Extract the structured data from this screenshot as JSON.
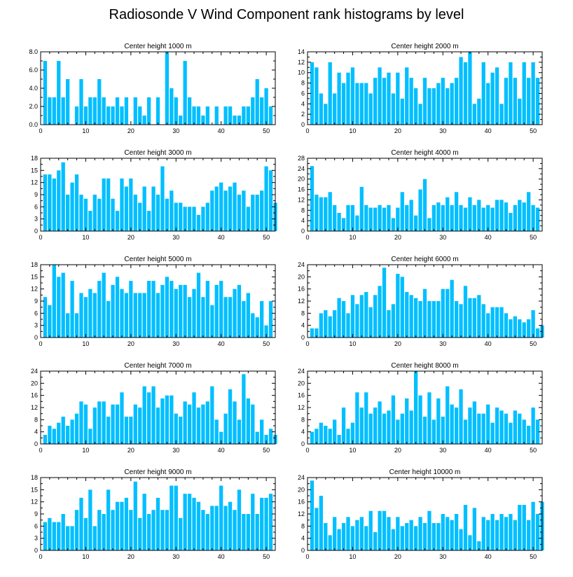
{
  "title": "Radiosonde V Wind Component rank histograms by level",
  "colors": {
    "bar": "#00bfff",
    "axis": "#000000"
  },
  "chart_data": [
    {
      "type": "bar",
      "title": "Center height 1000 m",
      "x_ticks": [
        0,
        10,
        20,
        30,
        40,
        50
      ],
      "xlim": [
        0,
        52
      ],
      "ylim": [
        0,
        8
      ],
      "y_ticks": [
        0,
        2,
        4,
        6,
        8
      ],
      "y_tick_labels": [
        "0.0",
        "2.0",
        "4.0",
        "6.0",
        "8.0"
      ],
      "values": [
        7,
        3,
        3,
        7,
        3,
        5,
        0,
        2,
        5,
        2,
        3,
        3,
        5,
        3,
        2,
        2,
        3,
        2,
        3,
        0,
        3,
        2,
        1,
        3,
        0,
        3,
        0,
        8,
        4,
        3,
        1,
        7,
        3,
        2,
        2,
        1,
        2,
        0,
        2,
        0,
        2,
        2,
        1,
        1,
        2,
        2,
        3,
        5,
        3,
        4,
        2
      ]
    },
    {
      "type": "bar",
      "title": "Center height 2000 m",
      "x_ticks": [
        0,
        10,
        20,
        30,
        40,
        50
      ],
      "xlim": [
        0,
        52
      ],
      "ylim": [
        0,
        14
      ],
      "y_ticks": [
        0,
        2,
        4,
        6,
        8,
        10,
        12,
        14
      ],
      "y_tick_labels": [
        "0",
        "2",
        "4",
        "6",
        "8",
        "10",
        "12",
        "14"
      ],
      "values": [
        12,
        11,
        6,
        4,
        12,
        6,
        10,
        8,
        10,
        11,
        8,
        8,
        8,
        6,
        9,
        11,
        9,
        10,
        6,
        10,
        5,
        11,
        9,
        7,
        4,
        9,
        7,
        7,
        8,
        9,
        7,
        8,
        9,
        13,
        12,
        14,
        4,
        5,
        12,
        8,
        10,
        11,
        4,
        9,
        12,
        9,
        5,
        12,
        9,
        12,
        9
      ]
    },
    {
      "type": "bar",
      "title": "Center height 3000 m",
      "x_ticks": [
        0,
        10,
        20,
        30,
        40,
        50
      ],
      "xlim": [
        0,
        52
      ],
      "ylim": [
        0,
        18
      ],
      "y_ticks": [
        0,
        3,
        6,
        9,
        12,
        15,
        18
      ],
      "y_tick_labels": [
        "0",
        "3",
        "6",
        "9",
        "12",
        "15",
        "18"
      ],
      "values": [
        14,
        14,
        13,
        15,
        17,
        9,
        12,
        14,
        9,
        8,
        5,
        9,
        8,
        13,
        13,
        8,
        5,
        13,
        11,
        13,
        9,
        7,
        11,
        5,
        11,
        9,
        16,
        8,
        10,
        7,
        7,
        6,
        6,
        6,
        4,
        6,
        7,
        10,
        11,
        12,
        10,
        11,
        12,
        9,
        10,
        6,
        9,
        9,
        10,
        16,
        15,
        7
      ]
    },
    {
      "type": "bar",
      "title": "Center height 4000 m",
      "x_ticks": [
        0,
        10,
        20,
        30,
        40,
        50
      ],
      "xlim": [
        0,
        52
      ],
      "ylim": [
        0,
        28
      ],
      "y_ticks": [
        0,
        4,
        8,
        12,
        16,
        20,
        24,
        28
      ],
      "y_tick_labels": [
        "0",
        "4",
        "8",
        "12",
        "16",
        "20",
        "24",
        "28"
      ],
      "values": [
        25,
        14,
        13,
        13,
        15,
        10,
        7,
        5,
        10,
        10,
        6,
        17,
        10,
        9,
        9,
        10,
        9,
        10,
        5,
        9,
        15,
        10,
        12,
        6,
        16,
        20,
        5,
        10,
        11,
        10,
        13,
        10,
        15,
        10,
        9,
        13,
        10,
        12,
        9,
        10,
        9,
        12,
        12,
        11,
        7,
        10,
        12,
        11,
        15,
        10,
        9
      ]
    },
    {
      "type": "bar",
      "title": "Center height 5000 m",
      "x_ticks": [
        0,
        10,
        20,
        30,
        40,
        50
      ],
      "xlim": [
        0,
        52
      ],
      "ylim": [
        0,
        18
      ],
      "y_ticks": [
        0,
        3,
        6,
        9,
        12,
        15,
        18
      ],
      "y_tick_labels": [
        "0",
        "3",
        "6",
        "9",
        "12",
        "15",
        "18"
      ],
      "values": [
        10,
        8,
        18,
        15,
        16,
        6,
        14,
        6,
        11,
        10,
        12,
        11,
        14,
        16,
        9,
        13,
        15,
        12,
        11,
        14,
        11,
        11,
        11,
        14,
        14,
        11,
        13,
        15,
        14,
        12,
        13,
        13,
        10,
        12,
        16,
        10,
        14,
        8,
        13,
        14,
        10,
        10,
        12,
        13,
        9,
        11,
        6,
        5,
        9,
        3,
        9
      ]
    },
    {
      "type": "bar",
      "title": "Center height 6000 m",
      "x_ticks": [
        0,
        10,
        20,
        30,
        40,
        50
      ],
      "xlim": [
        0,
        52
      ],
      "ylim": [
        0,
        24
      ],
      "y_ticks": [
        0,
        4,
        8,
        12,
        16,
        20,
        24
      ],
      "y_tick_labels": [
        "0",
        "4",
        "8",
        "12",
        "16",
        "20",
        "24"
      ],
      "values": [
        3,
        3,
        8,
        9,
        7,
        9,
        13,
        12,
        8,
        14,
        11,
        14,
        15,
        10,
        14,
        17,
        23,
        9,
        11,
        21,
        20,
        15,
        14,
        13,
        12,
        16,
        12,
        12,
        12,
        16,
        16,
        19,
        12,
        11,
        17,
        13,
        13,
        14,
        11,
        8,
        10,
        10,
        10,
        8,
        6,
        7,
        6,
        5,
        6,
        9,
        3,
        4
      ]
    },
    {
      "type": "bar",
      "title": "Center height 7000 m",
      "x_ticks": [
        0,
        10,
        20,
        30,
        40,
        50
      ],
      "xlim": [
        0,
        52
      ],
      "ylim": [
        0,
        24
      ],
      "y_ticks": [
        0,
        4,
        8,
        12,
        16,
        20,
        24
      ],
      "y_tick_labels": [
        "0",
        "4",
        "8",
        "12",
        "16",
        "20",
        "24"
      ],
      "values": [
        3,
        6,
        5,
        7,
        9,
        6,
        8,
        10,
        14,
        13,
        5,
        12,
        14,
        14,
        9,
        13,
        13,
        17,
        9,
        9,
        13,
        12,
        19,
        17,
        19,
        12,
        15,
        16,
        16,
        10,
        9,
        14,
        13,
        17,
        12,
        13,
        14,
        19,
        8,
        4,
        10,
        18,
        14,
        8,
        23,
        15,
        13,
        4,
        8,
        3,
        5,
        3
      ]
    },
    {
      "type": "bar",
      "title": "Center height 8000 m",
      "x_ticks": [
        0,
        10,
        20,
        30,
        40,
        50
      ],
      "xlim": [
        0,
        52
      ],
      "ylim": [
        0,
        24
      ],
      "y_ticks": [
        0,
        4,
        8,
        12,
        16,
        20,
        24
      ],
      "y_tick_labels": [
        "0",
        "4",
        "8",
        "12",
        "16",
        "20",
        "24"
      ],
      "values": [
        4,
        5,
        7,
        6,
        5,
        8,
        3,
        12,
        5,
        7,
        17,
        12,
        17,
        10,
        12,
        14,
        10,
        11,
        16,
        8,
        10,
        15,
        11,
        24,
        16,
        9,
        17,
        8,
        15,
        9,
        19,
        13,
        12,
        18,
        8,
        12,
        14,
        10,
        10,
        13,
        7,
        12,
        11,
        10,
        7,
        11,
        10,
        8,
        6,
        12,
        8
      ]
    },
    {
      "type": "bar",
      "title": "Center height 9000 m",
      "x_ticks": [
        0,
        10,
        20,
        30,
        40,
        50
      ],
      "xlim": [
        0,
        52
      ],
      "ylim": [
        0,
        18
      ],
      "y_ticks": [
        0,
        3,
        6,
        9,
        12,
        15,
        18
      ],
      "y_tick_labels": [
        "0",
        "3",
        "6",
        "9",
        "12",
        "15",
        "18"
      ],
      "values": [
        7,
        8,
        7,
        7,
        9,
        6,
        6,
        10,
        13,
        8,
        15,
        6,
        10,
        9,
        15,
        10,
        12,
        12,
        13,
        10,
        17,
        8,
        14,
        9,
        10,
        13,
        10,
        10,
        16,
        16,
        8,
        14,
        14,
        13,
        12,
        10,
        9,
        11,
        11,
        16,
        11,
        12,
        10,
        15,
        9,
        9,
        14,
        9,
        13,
        13,
        14
      ]
    },
    {
      "type": "bar",
      "title": "Center height 10000 m",
      "x_ticks": [
        0,
        10,
        20,
        30,
        40,
        50
      ],
      "xlim": [
        0,
        52
      ],
      "ylim": [
        0,
        24
      ],
      "y_ticks": [
        0,
        4,
        8,
        12,
        16,
        20,
        24
      ],
      "y_tick_labels": [
        "0",
        "4",
        "8",
        "12",
        "16",
        "20",
        "24"
      ],
      "values": [
        23,
        14,
        18,
        9,
        5,
        11,
        7,
        9,
        11,
        8,
        10,
        11,
        8,
        13,
        6,
        13,
        13,
        11,
        7,
        11,
        8,
        9,
        10,
        8,
        11,
        9,
        13,
        9,
        9,
        12,
        11,
        10,
        12,
        7,
        15,
        5,
        14,
        3,
        11,
        10,
        12,
        10,
        12,
        11,
        12,
        10,
        15,
        15,
        10,
        16,
        12,
        16
      ]
    }
  ]
}
